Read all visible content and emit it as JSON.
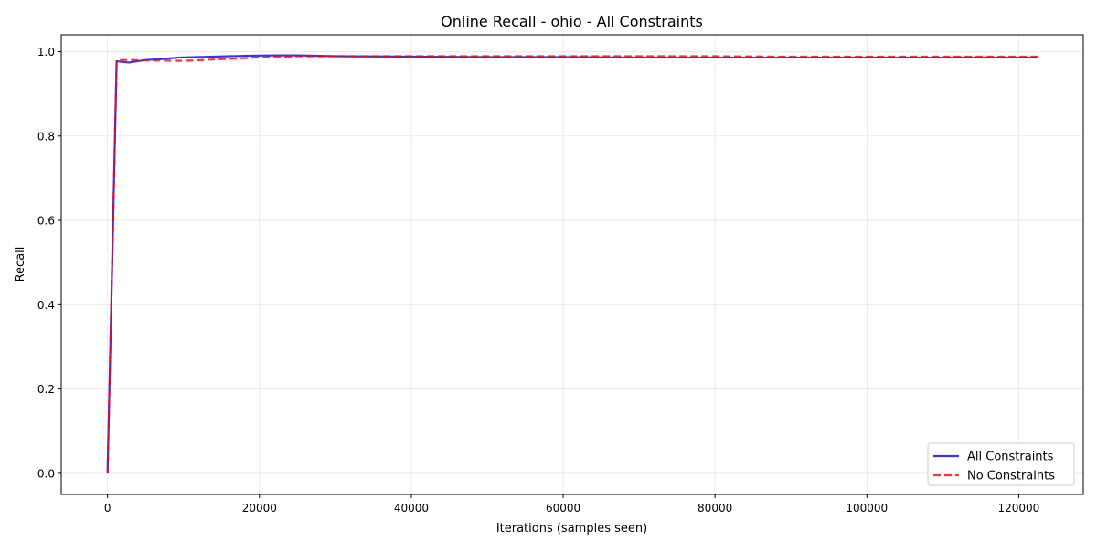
{
  "chart_data": {
    "type": "line",
    "title": "Online Recall - ohio - All Constraints",
    "xlabel": "Iterations (samples seen)",
    "ylabel": "Recall",
    "xlim": [
      -6100,
      128500
    ],
    "ylim": [
      -0.05,
      1.04
    ],
    "xticks": [
      0,
      20000,
      40000,
      60000,
      80000,
      100000,
      120000
    ],
    "yticks": [
      0.0,
      0.2,
      0.4,
      0.6,
      0.8,
      1.0
    ],
    "xtick_labels": [
      "0",
      "20000",
      "40000",
      "60000",
      "80000",
      "100000",
      "120000"
    ],
    "ytick_labels": [
      "0.0",
      "0.2",
      "0.4",
      "0.6",
      "0.8",
      "1.0"
    ],
    "grid": true,
    "legend_position": "lower-right",
    "series": [
      {
        "name": "All Constraints",
        "color": "#0000ff",
        "style": "solid",
        "x": [
          0,
          1200,
          2800,
          5000,
          7000,
          9500,
          14000,
          18000,
          22000,
          25000,
          30000,
          40000,
          50000,
          60000,
          70000,
          80000,
          90000,
          100000,
          110000,
          122500
        ],
        "y": [
          0.0,
          0.977,
          0.974,
          0.98,
          0.982,
          0.986,
          0.988,
          0.99,
          0.991,
          0.991,
          0.989,
          0.988,
          0.987,
          0.987,
          0.986,
          0.986,
          0.986,
          0.986,
          0.986,
          0.986
        ]
      },
      {
        "name": "No Constraints",
        "color": "#ff0000",
        "style": "dashed",
        "x": [
          0,
          1200,
          3000,
          6000,
          10000,
          15000,
          20000,
          25000,
          30000,
          40000,
          50000,
          60000,
          70000,
          80000,
          90000,
          100000,
          110000,
          122500
        ],
        "y": [
          0.0,
          0.98,
          0.98,
          0.979,
          0.978,
          0.982,
          0.986,
          0.989,
          0.989,
          0.989,
          0.989,
          0.989,
          0.989,
          0.989,
          0.988,
          0.988,
          0.988,
          0.988
        ]
      }
    ]
  }
}
